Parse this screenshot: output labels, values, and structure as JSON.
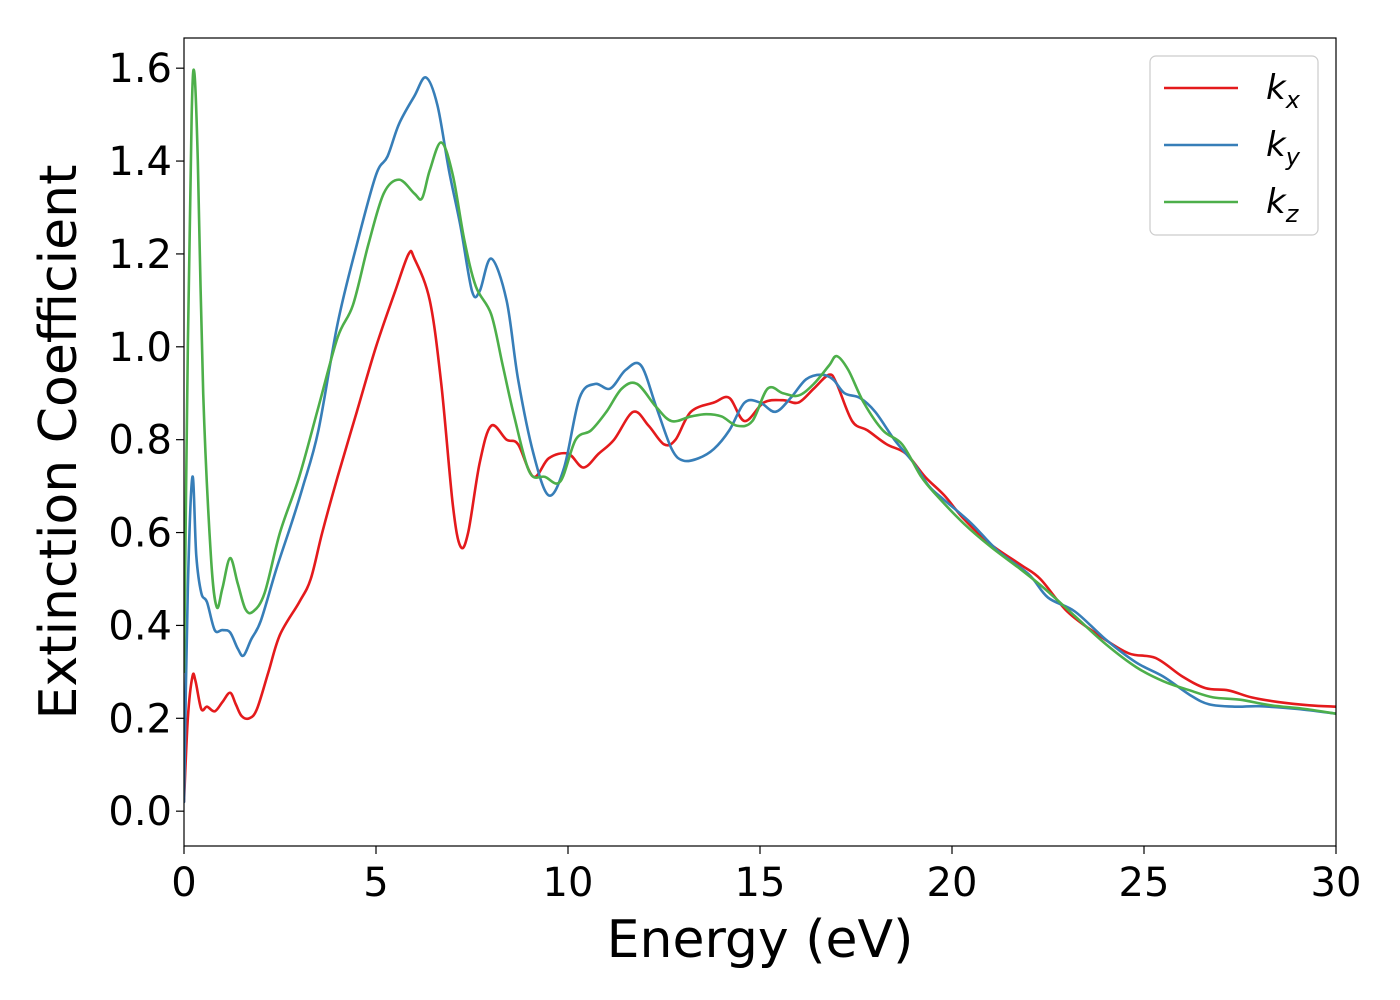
{
  "chart_data": {
    "type": "line",
    "title": "",
    "xlabel": "Energy (eV)",
    "ylabel": "Extinction Coefficient",
    "xlim": [
      0,
      30
    ],
    "ylim": [
      -0.075,
      1.665
    ],
    "xticks": [
      0,
      5,
      10,
      15,
      20,
      25,
      30
    ],
    "xtick_labels": [
      "0",
      "5",
      "10",
      "15",
      "20",
      "25",
      "30"
    ],
    "yticks": [
      0.0,
      0.2,
      0.4,
      0.6,
      0.8,
      1.0,
      1.2,
      1.4,
      1.6
    ],
    "ytick_labels": [
      "0.0",
      "0.2",
      "0.4",
      "0.6",
      "0.8",
      "1.0",
      "1.2",
      "1.4",
      "1.6"
    ],
    "grid": false,
    "legend_position": "top-right",
    "series": [
      {
        "name": "k",
        "subscript": "x",
        "color": "#e41a1c",
        "points": [
          [
            0,
            0.02
          ],
          [
            0.1,
            0.2
          ],
          [
            0.22,
            0.29
          ],
          [
            0.3,
            0.28
          ],
          [
            0.45,
            0.22
          ],
          [
            0.6,
            0.225
          ],
          [
            0.8,
            0.215
          ],
          [
            1.0,
            0.235
          ],
          [
            1.2,
            0.255
          ],
          [
            1.35,
            0.23
          ],
          [
            1.5,
            0.205
          ],
          [
            1.7,
            0.2
          ],
          [
            1.9,
            0.22
          ],
          [
            2.2,
            0.3
          ],
          [
            2.5,
            0.38
          ],
          [
            3.0,
            0.45
          ],
          [
            3.3,
            0.5
          ],
          [
            3.6,
            0.6
          ],
          [
            4.0,
            0.72
          ],
          [
            4.5,
            0.86
          ],
          [
            5.0,
            1.0
          ],
          [
            5.5,
            1.12
          ],
          [
            5.85,
            1.2
          ],
          [
            6.0,
            1.19
          ],
          [
            6.4,
            1.1
          ],
          [
            6.7,
            0.92
          ],
          [
            7.0,
            0.66
          ],
          [
            7.2,
            0.57
          ],
          [
            7.4,
            0.6
          ],
          [
            7.7,
            0.75
          ],
          [
            8.0,
            0.83
          ],
          [
            8.4,
            0.8
          ],
          [
            8.7,
            0.79
          ],
          [
            9.1,
            0.72
          ],
          [
            9.5,
            0.76
          ],
          [
            10.0,
            0.77
          ],
          [
            10.4,
            0.74
          ],
          [
            10.8,
            0.77
          ],
          [
            11.2,
            0.8
          ],
          [
            11.7,
            0.86
          ],
          [
            12.1,
            0.83
          ],
          [
            12.5,
            0.79
          ],
          [
            12.8,
            0.8
          ],
          [
            13.2,
            0.86
          ],
          [
            13.8,
            0.88
          ],
          [
            14.2,
            0.89
          ],
          [
            14.6,
            0.84
          ],
          [
            15.1,
            0.88
          ],
          [
            15.6,
            0.885
          ],
          [
            16.0,
            0.88
          ],
          [
            16.4,
            0.91
          ],
          [
            16.8,
            0.94
          ],
          [
            17.0,
            0.92
          ],
          [
            17.4,
            0.84
          ],
          [
            17.8,
            0.82
          ],
          [
            18.3,
            0.79
          ],
          [
            18.8,
            0.77
          ],
          [
            19.3,
            0.72
          ],
          [
            19.8,
            0.68
          ],
          [
            20.3,
            0.63
          ],
          [
            21.0,
            0.575
          ],
          [
            21.8,
            0.53
          ],
          [
            22.3,
            0.5
          ],
          [
            23.0,
            0.43
          ],
          [
            23.8,
            0.38
          ],
          [
            24.6,
            0.34
          ],
          [
            25.3,
            0.33
          ],
          [
            26.0,
            0.29
          ],
          [
            26.6,
            0.265
          ],
          [
            27.2,
            0.26
          ],
          [
            27.8,
            0.245
          ],
          [
            28.5,
            0.235
          ],
          [
            29.3,
            0.228
          ],
          [
            30.0,
            0.225
          ]
        ]
      },
      {
        "name": "k",
        "subscript": "y",
        "color": "#377eb8",
        "points": [
          [
            0,
            0.02
          ],
          [
            0.1,
            0.48
          ],
          [
            0.22,
            0.72
          ],
          [
            0.32,
            0.55
          ],
          [
            0.45,
            0.47
          ],
          [
            0.6,
            0.45
          ],
          [
            0.8,
            0.39
          ],
          [
            1.0,
            0.39
          ],
          [
            1.2,
            0.385
          ],
          [
            1.4,
            0.35
          ],
          [
            1.55,
            0.335
          ],
          [
            1.75,
            0.37
          ],
          [
            2.0,
            0.41
          ],
          [
            2.4,
            0.52
          ],
          [
            2.8,
            0.62
          ],
          [
            3.1,
            0.7
          ],
          [
            3.5,
            0.82
          ],
          [
            4.0,
            1.05
          ],
          [
            4.5,
            1.22
          ],
          [
            5.0,
            1.37
          ],
          [
            5.3,
            1.41
          ],
          [
            5.6,
            1.48
          ],
          [
            6.0,
            1.54
          ],
          [
            6.3,
            1.58
          ],
          [
            6.6,
            1.52
          ],
          [
            6.9,
            1.38
          ],
          [
            7.2,
            1.26
          ],
          [
            7.5,
            1.12
          ],
          [
            7.7,
            1.12
          ],
          [
            8.0,
            1.19
          ],
          [
            8.4,
            1.1
          ],
          [
            8.7,
            0.93
          ],
          [
            9.1,
            0.77
          ],
          [
            9.5,
            0.68
          ],
          [
            9.9,
            0.74
          ],
          [
            10.3,
            0.89
          ],
          [
            10.7,
            0.92
          ],
          [
            11.1,
            0.91
          ],
          [
            11.5,
            0.95
          ],
          [
            11.9,
            0.96
          ],
          [
            12.3,
            0.87
          ],
          [
            12.7,
            0.78
          ],
          [
            13.0,
            0.755
          ],
          [
            13.4,
            0.76
          ],
          [
            13.8,
            0.78
          ],
          [
            14.2,
            0.82
          ],
          [
            14.6,
            0.88
          ],
          [
            15.0,
            0.88
          ],
          [
            15.4,
            0.86
          ],
          [
            15.8,
            0.89
          ],
          [
            16.2,
            0.93
          ],
          [
            16.6,
            0.94
          ],
          [
            16.9,
            0.93
          ],
          [
            17.2,
            0.9
          ],
          [
            17.6,
            0.89
          ],
          [
            18.0,
            0.86
          ],
          [
            18.5,
            0.8
          ],
          [
            19.0,
            0.75
          ],
          [
            19.4,
            0.7
          ],
          [
            19.8,
            0.67
          ],
          [
            20.5,
            0.62
          ],
          [
            21.2,
            0.56
          ],
          [
            22.0,
            0.51
          ],
          [
            22.5,
            0.46
          ],
          [
            23.2,
            0.43
          ],
          [
            24.0,
            0.37
          ],
          [
            24.8,
            0.32
          ],
          [
            25.5,
            0.29
          ],
          [
            26.2,
            0.25
          ],
          [
            26.7,
            0.23
          ],
          [
            27.4,
            0.225
          ],
          [
            28.0,
            0.226
          ],
          [
            29.0,
            0.22
          ],
          [
            30.0,
            0.21
          ]
        ]
      },
      {
        "name": "k",
        "subscript": "z",
        "color": "#4daf4a",
        "points": [
          [
            0,
            0.3
          ],
          [
            0.1,
            1.0
          ],
          [
            0.2,
            1.5
          ],
          [
            0.27,
            1.59
          ],
          [
            0.36,
            1.4
          ],
          [
            0.5,
            0.9
          ],
          [
            0.7,
            0.55
          ],
          [
            0.85,
            0.44
          ],
          [
            1.0,
            0.48
          ],
          [
            1.2,
            0.545
          ],
          [
            1.4,
            0.49
          ],
          [
            1.6,
            0.435
          ],
          [
            1.8,
            0.43
          ],
          [
            2.1,
            0.47
          ],
          [
            2.5,
            0.6
          ],
          [
            3.0,
            0.72
          ],
          [
            3.5,
            0.87
          ],
          [
            4.0,
            1.02
          ],
          [
            4.4,
            1.09
          ],
          [
            4.8,
            1.22
          ],
          [
            5.2,
            1.33
          ],
          [
            5.6,
            1.36
          ],
          [
            6.0,
            1.33
          ],
          [
            6.2,
            1.32
          ],
          [
            6.4,
            1.38
          ],
          [
            6.7,
            1.44
          ],
          [
            7.0,
            1.37
          ],
          [
            7.3,
            1.23
          ],
          [
            7.6,
            1.13
          ],
          [
            8.0,
            1.07
          ],
          [
            8.3,
            0.96
          ],
          [
            8.6,
            0.85
          ],
          [
            9.0,
            0.73
          ],
          [
            9.4,
            0.72
          ],
          [
            9.8,
            0.71
          ],
          [
            10.2,
            0.8
          ],
          [
            10.6,
            0.82
          ],
          [
            11.0,
            0.86
          ],
          [
            11.4,
            0.91
          ],
          [
            11.8,
            0.92
          ],
          [
            12.3,
            0.87
          ],
          [
            12.7,
            0.84
          ],
          [
            13.2,
            0.85
          ],
          [
            13.6,
            0.855
          ],
          [
            14.0,
            0.85
          ],
          [
            14.4,
            0.83
          ],
          [
            14.8,
            0.84
          ],
          [
            15.2,
            0.91
          ],
          [
            15.6,
            0.9
          ],
          [
            16.0,
            0.895
          ],
          [
            16.4,
            0.92
          ],
          [
            16.8,
            0.96
          ],
          [
            17.0,
            0.98
          ],
          [
            17.3,
            0.95
          ],
          [
            17.7,
            0.88
          ],
          [
            18.2,
            0.82
          ],
          [
            18.7,
            0.79
          ],
          [
            19.2,
            0.72
          ],
          [
            19.6,
            0.68
          ],
          [
            20.3,
            0.62
          ],
          [
            21.0,
            0.57
          ],
          [
            21.8,
            0.52
          ],
          [
            22.4,
            0.48
          ],
          [
            23.2,
            0.42
          ],
          [
            24.0,
            0.36
          ],
          [
            24.8,
            0.31
          ],
          [
            25.5,
            0.28
          ],
          [
            26.2,
            0.26
          ],
          [
            26.8,
            0.245
          ],
          [
            27.5,
            0.24
          ],
          [
            28.3,
            0.228
          ],
          [
            29.2,
            0.22
          ],
          [
            30.0,
            0.21
          ]
        ]
      }
    ]
  }
}
